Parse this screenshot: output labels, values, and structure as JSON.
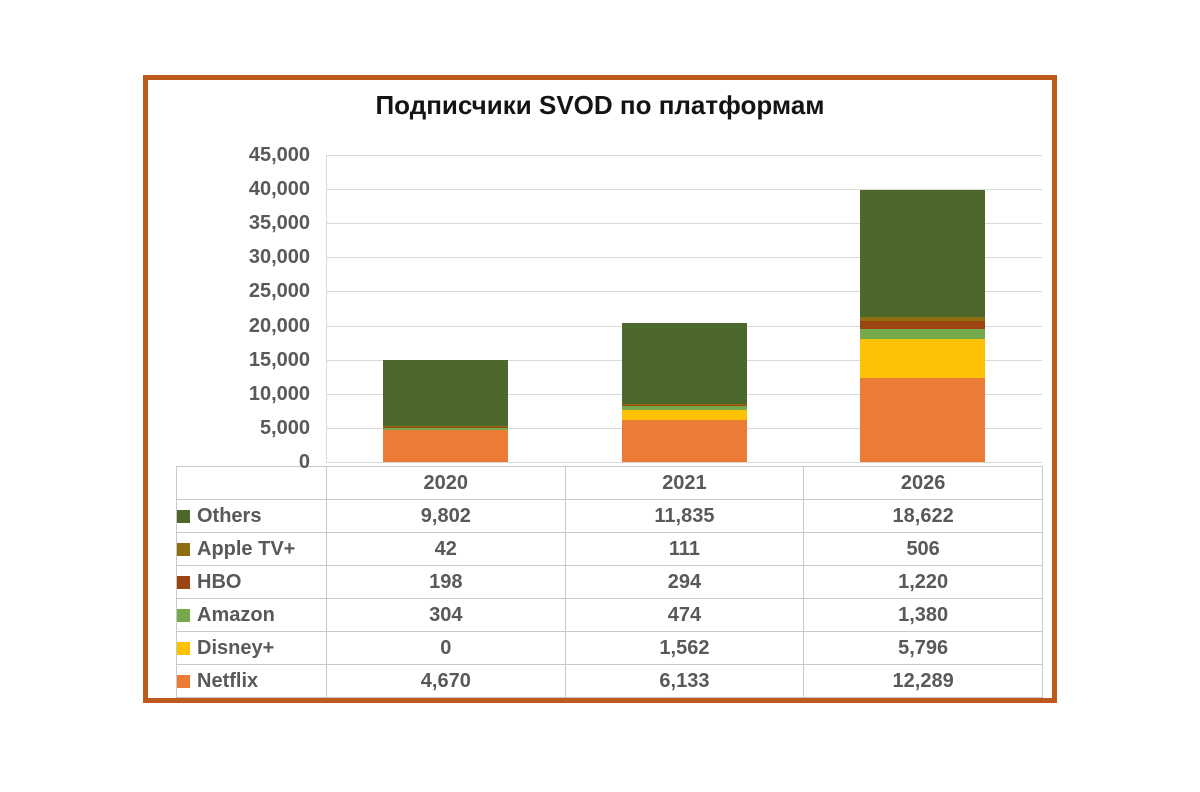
{
  "frame": {
    "border_color": "#BE5A1E",
    "background": "#FFFFFF"
  },
  "chart_data": {
    "type": "bar",
    "stacked": true,
    "title": "Подписчики SVOD по платформам",
    "categories": [
      "2020",
      "2021",
      "2026"
    ],
    "series": [
      {
        "name": "Others",
        "color": "#4C682C",
        "values": [
          9802,
          11835,
          18622
        ]
      },
      {
        "name": "Apple TV+",
        "color": "#8E6E10",
        "values": [
          42,
          111,
          506
        ]
      },
      {
        "name": "HBO",
        "color": "#9B4513",
        "values": [
          198,
          294,
          1220
        ]
      },
      {
        "name": "Amazon",
        "color": "#76A84C",
        "values": [
          304,
          474,
          1380
        ]
      },
      {
        "name": "Disney+",
        "color": "#FCC203",
        "values": [
          0,
          1562,
          5796
        ]
      },
      {
        "name": "Netflix",
        "color": "#EC7C35",
        "values": [
          4670,
          6133,
          12289
        ]
      }
    ],
    "stack_order_bottom_up": [
      "Netflix",
      "Disney+",
      "Amazon",
      "HBO",
      "Apple TV+",
      "Others"
    ],
    "y_axis": {
      "min": 0,
      "max": 45000,
      "step": 5000,
      "tick_labels": [
        "0",
        "5,000",
        "10,000",
        "15,000",
        "20,000",
        "25,000",
        "30,000",
        "35,000",
        "40,000",
        "45,000"
      ]
    },
    "grid": true,
    "legend_position": "table-left",
    "colors": {
      "gridline": "#D9D9D9",
      "tick_text": "#595959",
      "title_text": "#141414"
    }
  },
  "table": {
    "header": [
      "",
      "2020",
      "2021",
      "2026"
    ],
    "rows": [
      {
        "label": "Others",
        "values": [
          "9,802",
          "11,835",
          "18,622"
        ]
      },
      {
        "label": "Apple TV+",
        "values": [
          "42",
          "111",
          "506"
        ]
      },
      {
        "label": "HBO",
        "values": [
          "198",
          "294",
          "1,220"
        ]
      },
      {
        "label": "Amazon",
        "values": [
          "304",
          "474",
          "1,380"
        ]
      },
      {
        "label": "Disney+",
        "values": [
          "0",
          "1,562",
          "5,796"
        ]
      },
      {
        "label": "Netflix",
        "values": [
          "4,670",
          "6,133",
          "12,289"
        ]
      }
    ]
  }
}
